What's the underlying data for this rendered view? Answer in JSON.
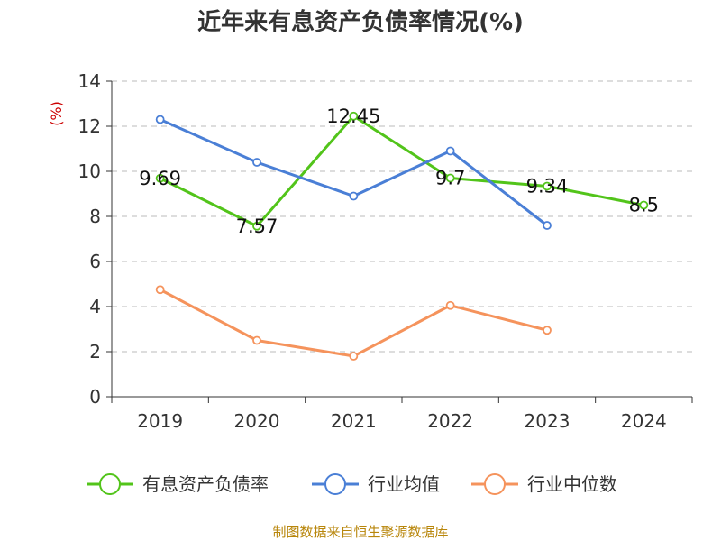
{
  "chart_data": {
    "type": "line",
    "title": "近年来有息资产负债率情况(%)",
    "ylabel": "(%)",
    "categories": [
      "2019",
      "2020",
      "2021",
      "2022",
      "2023",
      "2024"
    ],
    "ylim": [
      0,
      14
    ],
    "yticks": [
      "0",
      "2",
      "4",
      "6",
      "8",
      "10",
      "12",
      "14"
    ],
    "grid": true,
    "legend_position": "bottom",
    "series": [
      {
        "name": "有息资产负债率",
        "color": "#52c41a",
        "values": [
          9.69,
          7.57,
          12.45,
          9.7,
          9.34,
          8.5
        ],
        "labels": [
          "9.69",
          "7.57",
          "12.45",
          "9.7",
          "9.34",
          "8.5"
        ]
      },
      {
        "name": "行业均值",
        "color": "#4a7fd6",
        "values": [
          12.3,
          10.4,
          8.9,
          10.9,
          7.6,
          null
        ]
      },
      {
        "name": "行业中位数",
        "color": "#f5935c",
        "values": [
          4.75,
          2.5,
          1.8,
          4.05,
          2.95,
          null
        ]
      }
    ],
    "source": "制图数据来自恒生聚源数据库"
  }
}
